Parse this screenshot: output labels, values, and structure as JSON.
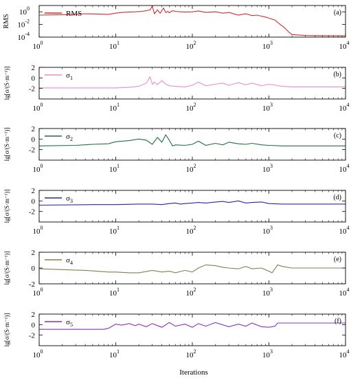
{
  "figure": {
    "xlabel": "Iterations"
  },
  "chart_data": [
    {
      "type": "line",
      "panel": "(a)",
      "ylabel": "RMS",
      "xscale": "log",
      "xlim": [
        1,
        10000
      ],
      "yscale": "log",
      "ylim": [
        0.0001,
        10
      ],
      "xticks": [
        1,
        10,
        100,
        1000,
        10000
      ],
      "xtick_labels": [
        [
          "10",
          "0"
        ],
        [
          "10",
          "1"
        ],
        [
          "10",
          "2"
        ],
        [
          "10",
          "3"
        ],
        [
          "10",
          "4"
        ]
      ],
      "yticks": [
        0.0001,
        0.01,
        1
      ],
      "ytick_labels": [
        [
          "10",
          "-4"
        ],
        [
          "10",
          "-2"
        ],
        [
          "10",
          "0"
        ]
      ],
      "legend_position": "top-left",
      "series": [
        {
          "name": "RMS",
          "legend_text": "RMS",
          "color": "#d42a2a",
          "x": [
            1,
            2,
            4,
            6,
            8,
            10,
            12,
            15,
            18,
            22,
            25,
            28,
            30,
            32,
            35,
            38,
            42,
            45,
            48,
            50,
            52,
            55,
            60,
            70,
            80,
            100,
            120,
            150,
            200,
            250,
            300,
            400,
            500,
            600,
            700,
            800,
            900,
            1000,
            1200,
            1400,
            1600,
            1800,
            2000,
            3000,
            5000,
            10000
          ],
          "y": [
            0.3,
            0.35,
            0.5,
            0.45,
            0.4,
            0.6,
            0.8,
            0.9,
            1.0,
            1.2,
            1.5,
            2.0,
            8.0,
            0.5,
            2.0,
            0.6,
            4.0,
            0.8,
            1.2,
            0.7,
            1.0,
            1.5,
            1.2,
            1.0,
            0.9,
            1.0,
            1.4,
            0.8,
            1.0,
            0.6,
            0.8,
            0.3,
            0.5,
            0.25,
            0.3,
            0.2,
            0.15,
            0.1,
            0.05,
            0.01,
            0.003,
            0.0007,
            0.00025,
            0.00018,
            0.00017,
            0.00016
          ]
        }
      ]
    },
    {
      "type": "line",
      "panel": "(b)",
      "ylabel": "lg[σ/(S·m⁻¹)]",
      "xscale": "log",
      "xlim": [
        1,
        10000
      ],
      "ylim": [
        -4,
        2
      ],
      "xticks": [
        1,
        10,
        100,
        1000,
        10000
      ],
      "xtick_labels": [
        [
          "10",
          "0"
        ],
        [
          "10",
          "1"
        ],
        [
          "10",
          "2"
        ],
        [
          "10",
          "3"
        ],
        [
          "10",
          "4"
        ]
      ],
      "yticks": [
        -2,
        0,
        2
      ],
      "ytick_labels": [
        "-2",
        "0",
        "2"
      ],
      "legend_position": "top-left",
      "series": [
        {
          "name": "σ1",
          "legend_text": "σ",
          "legend_sub": "1",
          "color": "#e78ec8",
          "x": [
            1,
            5,
            10,
            15,
            20,
            25,
            28,
            30,
            32,
            35,
            40,
            45,
            50,
            60,
            80,
            100,
            120,
            150,
            200,
            250,
            300,
            400,
            500,
            600,
            800,
            1000,
            1500,
            2000,
            5000,
            10000
          ],
          "y": [
            -1.9,
            -1.9,
            -1.9,
            -1.8,
            -1.6,
            -1.0,
            0.2,
            -1.2,
            -0.8,
            -1.3,
            -0.5,
            -1.2,
            -1.5,
            -1.6,
            -1.7,
            -1.4,
            -0.8,
            -1.5,
            -1.2,
            -1.0,
            -1.4,
            -0.9,
            -1.3,
            -1.0,
            -1.5,
            -1.2,
            -1.6,
            -1.7,
            -1.7,
            -1.7
          ]
        }
      ]
    },
    {
      "type": "line",
      "panel": "(c)",
      "ylabel": "lg[σ/(S·m⁻¹)]",
      "xscale": "log",
      "xlim": [
        1,
        10000
      ],
      "ylim": [
        -4,
        2
      ],
      "xticks": [
        1,
        10,
        100,
        1000,
        10000
      ],
      "xtick_labels": [
        [
          "10",
          "0"
        ],
        [
          "10",
          "1"
        ],
        [
          "10",
          "2"
        ],
        [
          "10",
          "3"
        ],
        [
          "10",
          "4"
        ]
      ],
      "yticks": [
        -2,
        0,
        2
      ],
      "ytick_labels": [
        "-2",
        "0",
        "2"
      ],
      "legend_position": "top-left",
      "series": [
        {
          "name": "σ2",
          "legend_text": "σ",
          "legend_sub": "2",
          "color": "#1f6e43",
          "x": [
            1,
            3,
            5,
            8,
            10,
            15,
            20,
            25,
            30,
            35,
            40,
            45,
            50,
            55,
            60,
            80,
            100,
            120,
            150,
            200,
            250,
            300,
            400,
            500,
            600,
            800,
            1000,
            1500,
            2000,
            5000,
            10000
          ],
          "y": [
            -1.3,
            -1.2,
            -1.0,
            -0.9,
            -0.5,
            -0.3,
            0.0,
            -0.2,
            -1.0,
            0.3,
            -0.6,
            0.8,
            -0.2,
            -1.3,
            -1.1,
            -1.2,
            -1.0,
            -0.4,
            -1.2,
            -0.8,
            -1.1,
            -0.6,
            -0.9,
            -1.0,
            -0.8,
            -1.1,
            -1.2,
            -1.3,
            -1.3,
            -1.3,
            -1.3
          ]
        }
      ]
    },
    {
      "type": "line",
      "panel": "(d)",
      "ylabel": "lg[σ/(S·m⁻¹)]",
      "xscale": "log",
      "xlim": [
        1,
        10000
      ],
      "ylim": [
        -4,
        2
      ],
      "xticks": [
        1,
        10,
        100,
        1000,
        10000
      ],
      "xtick_labels": [
        [
          "10",
          "0"
        ],
        [
          "10",
          "1"
        ],
        [
          "10",
          "2"
        ],
        [
          "10",
          "3"
        ],
        [
          "10",
          "4"
        ]
      ],
      "yticks": [
        -2,
        0,
        2
      ],
      "ytick_labels": [
        "-2",
        "0",
        "2"
      ],
      "legend_position": "top-left",
      "series": [
        {
          "name": "σ3",
          "legend_text": "σ",
          "legend_sub": "3",
          "color": "#2626a8",
          "x": [
            1,
            5,
            10,
            20,
            30,
            40,
            50,
            60,
            70,
            80,
            100,
            120,
            150,
            200,
            250,
            300,
            400,
            500,
            600,
            800,
            1000,
            1500,
            2000,
            5000,
            10000
          ],
          "y": [
            -0.8,
            -0.7,
            -0.7,
            -0.6,
            -0.6,
            -0.7,
            -0.5,
            -0.4,
            -0.6,
            -0.5,
            -0.4,
            -0.3,
            -0.4,
            -0.2,
            -0.1,
            -0.3,
            0.0,
            -0.4,
            -0.3,
            -0.2,
            -0.5,
            -0.6,
            -0.6,
            -0.6,
            -0.6
          ]
        }
      ]
    },
    {
      "type": "line",
      "panel": "(e)",
      "ylabel": "lg[σ/(S·m⁻¹)]",
      "xscale": "log",
      "xlim": [
        1,
        10000
      ],
      "ylim": [
        -2,
        2
      ],
      "xticks": [
        1,
        10,
        100,
        1000,
        10000
      ],
      "xtick_labels": [
        [
          "10",
          "0"
        ],
        [
          "10",
          "1"
        ],
        [
          "10",
          "2"
        ],
        [
          "10",
          "3"
        ],
        [
          "10",
          "4"
        ]
      ],
      "yticks": [
        -2,
        0,
        2
      ],
      "ytick_labels": [
        "-2",
        "0",
        "2"
      ],
      "legend_position": "top-left",
      "series": [
        {
          "name": "σ4",
          "legend_text": "σ",
          "legend_sub": "4",
          "color": "#8c7a4a",
          "x": [
            1,
            2,
            4,
            8,
            10,
            15,
            20,
            30,
            40,
            50,
            60,
            80,
            100,
            120,
            150,
            200,
            250,
            300,
            400,
            500,
            600,
            800,
            1000,
            1100,
            1300,
            1500,
            2000,
            5000,
            10000
          ],
          "y": [
            -0.1,
            -0.2,
            -0.3,
            -0.5,
            -0.5,
            -0.6,
            -0.6,
            -0.3,
            -0.5,
            -0.4,
            -0.6,
            -0.3,
            -0.5,
            0.0,
            0.4,
            0.3,
            0.1,
            0.0,
            -0.1,
            0.2,
            -0.1,
            0.0,
            -0.4,
            -0.6,
            0.4,
            0.2,
            0.0,
            0.0,
            0.0
          ]
        }
      ]
    },
    {
      "type": "line",
      "panel": "(f)",
      "ylabel": "lg[σ/(S·m⁻¹)]",
      "xscale": "log",
      "xlim": [
        1,
        10000
      ],
      "ylim": [
        -4,
        2
      ],
      "xticks": [
        1,
        10,
        100,
        1000,
        10000
      ],
      "xtick_labels": [
        [
          "10",
          "0"
        ],
        [
          "10",
          "1"
        ],
        [
          "10",
          "2"
        ],
        [
          "10",
          "3"
        ],
        [
          "10",
          "4"
        ]
      ],
      "yticks": [
        -2,
        0,
        2
      ],
      "ytick_labels": [
        "-2",
        "0",
        "2"
      ],
      "legend_position": "top-left",
      "series": [
        {
          "name": "σ5",
          "legend_text": "σ",
          "legend_sub": "5",
          "color": "#8b2fc9",
          "x": [
            1,
            3,
            5,
            7,
            8,
            10,
            12,
            15,
            18,
            20,
            25,
            30,
            40,
            50,
            60,
            80,
            100,
            120,
            150,
            200,
            300,
            400,
            500,
            600,
            800,
            1000,
            1200,
            1300,
            1500,
            2000,
            5000,
            10000
          ],
          "y": [
            -0.9,
            -0.9,
            -0.9,
            -0.9,
            -0.7,
            0.1,
            -0.1,
            0.2,
            -0.2,
            0.1,
            -0.4,
            0.2,
            -0.5,
            0.4,
            -0.3,
            0.1,
            -0.5,
            0.2,
            -0.3,
            0.4,
            -0.4,
            0.1,
            -0.3,
            0.3,
            -0.4,
            -0.5,
            -0.3,
            0.3,
            0.3,
            0.3,
            0.3,
            0.3
          ]
        }
      ]
    }
  ]
}
